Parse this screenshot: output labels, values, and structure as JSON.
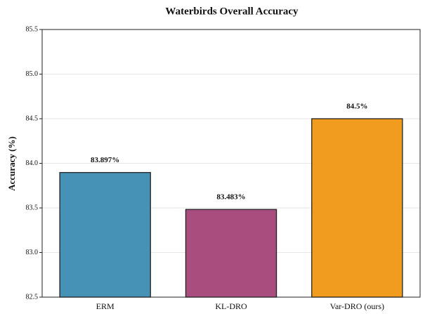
{
  "chart_data": {
    "type": "bar",
    "title": "Waterbirds Overall Accuracy",
    "y_label": "Accuracy (%)",
    "categories": [
      "ERM",
      "KL-DRO",
      "Var-DRO (ours)"
    ],
    "values": [
      83.897,
      83.483,
      84.5
    ],
    "value_labels": [
      "83.897%",
      "83.483%",
      "84.5%"
    ],
    "colors": [
      "#4692b6",
      "#a84d7e",
      "#f29c1f"
    ],
    "ylim": [
      82.5,
      85.5
    ],
    "yticks": [
      82.5,
      {
        "value": 83,
        "label": "83.0"
      },
      83.5,
      {
        "value": 84,
        "label": "84.0"
      },
      84.5,
      {
        "value": 85,
        "label": "85.0"
      },
      85.5
    ],
    "grid": true
  }
}
